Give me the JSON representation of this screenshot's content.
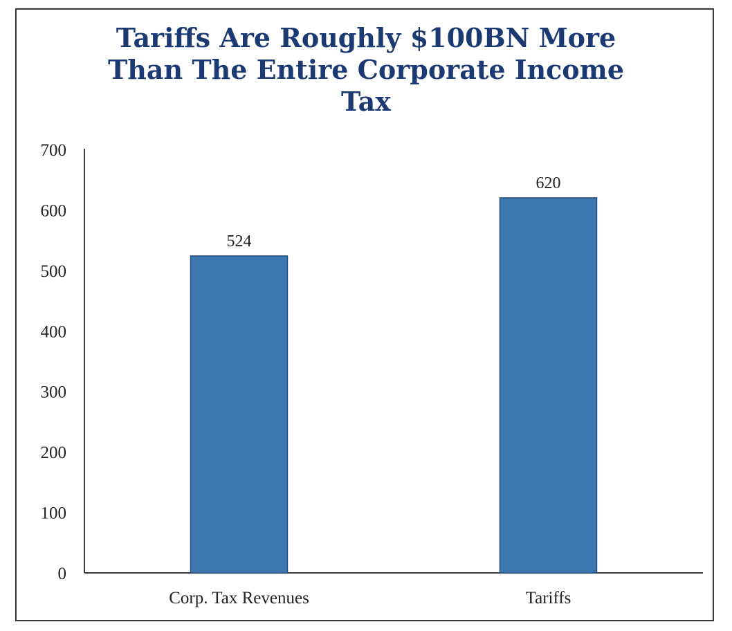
{
  "chart_data": {
    "type": "bar",
    "title_lines": [
      "Tariffs Are Roughly $100BN More",
      "Than The Entire Corporate Income",
      "Tax"
    ],
    "categories": [
      "Corp. Tax Revenues",
      "Tariffs"
    ],
    "values": [
      524,
      620
    ],
    "data_labels": [
      "524",
      "620"
    ],
    "ylim": [
      0,
      700
    ],
    "yticks": [
      "0",
      "100",
      "200",
      "300",
      "400",
      "500",
      "600",
      "700"
    ],
    "xlabel": "",
    "ylabel": "",
    "bar_color": "#3d78b3",
    "bar_edge_color": "#244c7a",
    "title_color": "#1b3a73",
    "grid": false,
    "legend": "none"
  }
}
